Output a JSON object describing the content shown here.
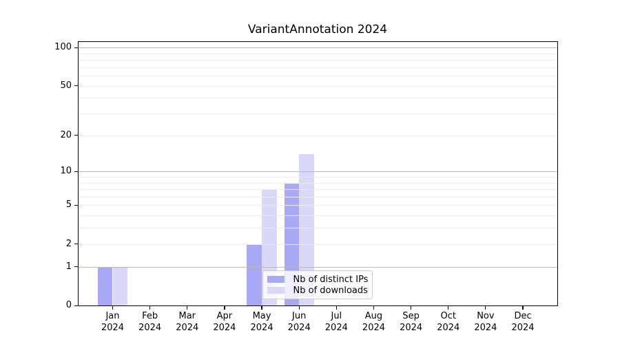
{
  "chart_data": {
    "type": "bar",
    "title": "VariantAnnotation 2024",
    "categories": [
      "Jan",
      "Feb",
      "Mar",
      "Apr",
      "May",
      "Jun",
      "Jul",
      "Aug",
      "Sep",
      "Oct",
      "Nov",
      "Dec"
    ],
    "category_year": "2024",
    "series": [
      {
        "name": "Nb of distinct IPs",
        "color": "#a9a8f4",
        "values": [
          1,
          0,
          0,
          0,
          2,
          8,
          0,
          0,
          0,
          0,
          0,
          0
        ]
      },
      {
        "name": "Nb of downloads",
        "color": "#d9d8f8",
        "values": [
          1,
          0,
          0,
          0,
          7,
          14,
          0,
          0,
          0,
          0,
          0,
          0
        ]
      }
    ],
    "xlabel": "",
    "ylabel": "",
    "yscale": "log1p",
    "ylim": [
      0,
      113
    ],
    "yticks": [
      0,
      1,
      2,
      5,
      10,
      20,
      50,
      100
    ],
    "major_gridlines": [
      1,
      10,
      100
    ],
    "minor_gridlines": [
      2,
      3,
      4,
      5,
      6,
      7,
      8,
      9,
      20,
      30,
      40,
      50,
      60,
      70,
      80,
      90
    ],
    "legend_position": "lower center",
    "grid": "on"
  },
  "colors": {
    "major_grid": "#b8b8b8",
    "minor_grid": "#ececec",
    "axis": "#000000",
    "background": "#ffffff"
  }
}
